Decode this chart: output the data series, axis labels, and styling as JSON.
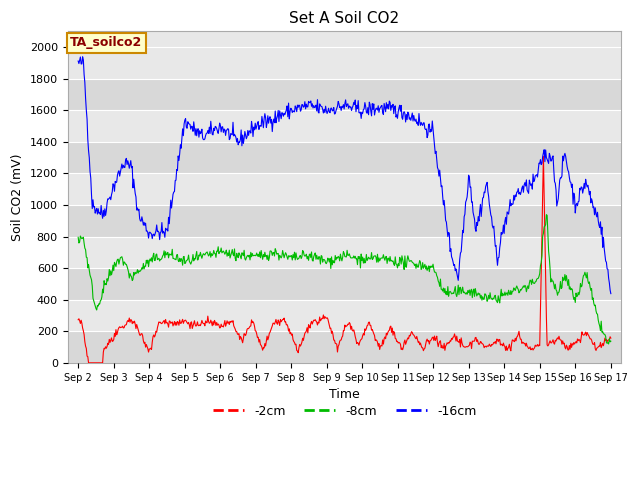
{
  "title": "Set A Soil CO2",
  "ylabel": "Soil CO2 (mV)",
  "xlabel": "Time",
  "ylim": [
    0,
    2100
  ],
  "plot_bg_light": "#e8e8e8",
  "plot_bg_dark": "#d8d8d8",
  "figure_color": "#ffffff",
  "label_box": "TA_soilco2",
  "legend_entries": [
    "-2cm",
    "-8cm",
    "-16cm"
  ],
  "line_colors": [
    "#ff0000",
    "#00bb00",
    "#0000ff"
  ],
  "xtick_labels": [
    "Sep 2",
    "Sep 3",
    "Sep 4",
    "Sep 5",
    "Sep 6",
    "Sep 7",
    "Sep 8",
    "Sep 9",
    "Sep 10",
    "Sep 11",
    "Sep 12",
    "Sep 13",
    "Sep 14",
    "Sep 15",
    "Sep 16",
    "Sep 17"
  ],
  "ytick_vals": [
    0,
    200,
    400,
    600,
    800,
    1000,
    1200,
    1400,
    1600,
    1800,
    2000
  ],
  "grid_color": "#ffffff",
  "title_fontsize": 11,
  "axis_fontsize": 9,
  "tick_fontsize": 8,
  "label_fontsize": 9
}
